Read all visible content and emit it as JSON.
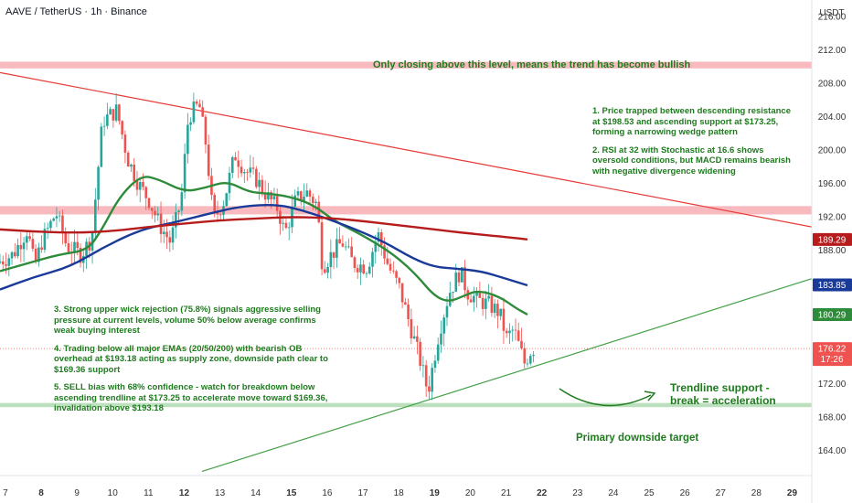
{
  "symbol_title": "AAVE / TetherUS · 1h · Binance",
  "currency": "USDT",
  "colors": {
    "up": "#26a69a",
    "down": "#ef5350",
    "ema20": "#2e8b3a",
    "ema50": "#1a3a99",
    "ema200": "#b71c1c",
    "zone": "#f5a3a8",
    "target_zone": "#a5d6a7",
    "resistance_line": "#e53935",
    "support_line": "#43a047",
    "note_text": "#1e7b1e"
  },
  "annotations": {
    "top_zone_label": "Only closing above this level, means the trend has become bullish",
    "notes_right": [
      "1. Price trapped between descending resistance",
      "at $198.53 and ascending support at $173.25,",
      "forming a narrowing wedge pattern",
      "",
      "2. RSI at 32 with Stochastic at 16.6 shows",
      "oversold conditions, but MACD remains bearish",
      "with negative divergence widening"
    ],
    "notes_left": [
      "3. Strong upper wick rejection (75.8%) signals aggressive selling",
      "pressure at current levels, volume 50% below average confirms",
      "weak buying interest",
      "",
      "4. Trading below all major EMAs (20/50/200) with bearish OB",
      "overhead at $193.18 acting as supply zone, downside path clear to",
      "$169.36 support",
      "",
      "5. SELL bias with 68% confidence - watch for breakdown below",
      "ascending trendline at $173.25 to accelerate move toward $169.36,",
      "invalidation above $193.18"
    ],
    "trendline_label": [
      "Trendline support -",
      "break = acceleration"
    ],
    "target_label": "Primary downside target"
  },
  "price_tags": [
    {
      "label": "189.29",
      "value": 189.29,
      "color": "#b71c1c"
    },
    {
      "label": "183.85",
      "value": 183.85,
      "color": "#1a3a99"
    },
    {
      "label": "180.29",
      "value": 180.29,
      "color": "#2e8b3a"
    },
    {
      "label": "176.22",
      "sub": "17:26",
      "value": 176.22,
      "color": "#ef5350"
    }
  ],
  "chart_data": {
    "type": "candlestick",
    "title": "AAVE / TetherUS · 1h · Binance",
    "y_axis": {
      "label": "USDT",
      "range": [
        161,
        218
      ],
      "ticks": [
        216,
        212,
        208,
        204,
        200,
        196,
        192,
        188,
        184,
        180,
        176,
        172,
        168,
        164
      ],
      "tick_labels": [
        "216.00",
        "212.00",
        "208.00",
        "204.00",
        "200.00",
        "196.00",
        "192.00",
        "188.00",
        "184.00",
        "180.00",
        "176.00",
        "172.00",
        "168.00",
        "164.00"
      ]
    },
    "x_axis": {
      "range": [
        6.85,
        29.55
      ],
      "ticks": [
        7,
        8,
        9,
        10,
        11,
        12,
        13,
        14,
        15,
        16,
        17,
        18,
        19,
        20,
        21,
        22,
        23,
        24,
        25,
        26,
        27,
        28,
        29
      ],
      "tick_labels": [
        "7",
        "8",
        "9",
        "10",
        "11",
        "12",
        "13",
        "14",
        "15",
        "16",
        "17",
        "18",
        "19",
        "20",
        "21",
        "22",
        "23",
        "24",
        "25",
        "26",
        "27",
        "28",
        "29"
      ],
      "bold_ticks": [
        "8",
        "12",
        "15",
        "19",
        "22",
        "29"
      ]
    },
    "price_path": [
      [
        6.85,
        186.5
      ],
      [
        7.3,
        187.5
      ],
      [
        7.7,
        190.5
      ],
      [
        7.9,
        186.0
      ],
      [
        8.1,
        189.0
      ],
      [
        8.5,
        192.5
      ],
      [
        8.8,
        188.5
      ],
      [
        9.2,
        187.5
      ],
      [
        9.5,
        189.5
      ],
      [
        9.8,
        203.5
      ],
      [
        10.2,
        204.8
      ],
      [
        10.5,
        199.0
      ],
      [
        10.8,
        196.0
      ],
      [
        11.1,
        194.0
      ],
      [
        11.4,
        191.0
      ],
      [
        11.7,
        189.0
      ],
      [
        12.0,
        194.0
      ],
      [
        12.2,
        204.0
      ],
      [
        12.5,
        205.5
      ],
      [
        12.7,
        200.5
      ],
      [
        12.9,
        191.5
      ],
      [
        13.2,
        194.0
      ],
      [
        13.5,
        199.5
      ],
      [
        13.8,
        197.5
      ],
      [
        14.1,
        196.5
      ],
      [
        14.4,
        194.5
      ],
      [
        14.7,
        193.0
      ],
      [
        14.9,
        190.0
      ],
      [
        15.2,
        194.0
      ],
      [
        15.5,
        195.0
      ],
      [
        15.8,
        193.5
      ],
      [
        15.95,
        186.0
      ],
      [
        16.2,
        187.5
      ],
      [
        16.5,
        189.0
      ],
      [
        16.8,
        186.5
      ],
      [
        17.2,
        186.0
      ],
      [
        17.5,
        190.0
      ],
      [
        17.8,
        186.0
      ],
      [
        18.1,
        183.5
      ],
      [
        18.4,
        179.0
      ],
      [
        18.7,
        174.5
      ],
      [
        18.9,
        171.0
      ],
      [
        19.2,
        178.0
      ],
      [
        19.5,
        183.0
      ],
      [
        19.8,
        185.5
      ],
      [
        20.0,
        183.0
      ],
      [
        20.3,
        182.0
      ],
      [
        20.6,
        181.5
      ],
      [
        20.9,
        180.5
      ],
      [
        21.1,
        177.5
      ],
      [
        21.3,
        178.5
      ],
      [
        21.6,
        174.5
      ],
      [
        21.8,
        176.2
      ]
    ],
    "series": [
      {
        "name": "EMA 20",
        "color": "#2e8b3a",
        "x": [
          6.85,
          7.5,
          8.5,
          9.3,
          9.7,
          10.2,
          10.8,
          11.3,
          12.0,
          12.6,
          13.2,
          13.8,
          14.3,
          14.9,
          15.6,
          16.2,
          16.9,
          17.5,
          18.0,
          18.5,
          19.0,
          19.4,
          19.8,
          20.2,
          20.8,
          21.3,
          21.6
        ],
        "y": [
          185.5,
          186.3,
          187.5,
          188.0,
          190.5,
          194.5,
          197.0,
          196.5,
          195.0,
          195.5,
          196.3,
          195.0,
          194.8,
          194.5,
          193.5,
          191.5,
          190.0,
          188.5,
          187.0,
          185.0,
          182.5,
          181.8,
          182.5,
          183.2,
          182.5,
          181.0,
          180.3
        ]
      },
      {
        "name": "EMA 50",
        "color": "#1a3a99",
        "x": [
          6.85,
          7.8,
          8.8,
          9.8,
          10.8,
          11.7,
          12.6,
          13.6,
          14.6,
          15.3,
          16.0,
          16.8,
          17.6,
          18.4,
          19.0,
          19.6,
          20.3,
          21.0,
          21.6
        ],
        "y": [
          183.3,
          184.8,
          186.0,
          188.5,
          190.5,
          191.3,
          192.3,
          193.3,
          193.5,
          192.8,
          191.8,
          190.5,
          189.0,
          187.0,
          186.0,
          185.8,
          185.5,
          184.6,
          183.8
        ]
      },
      {
        "name": "EMA 200",
        "color": "#b71c1c",
        "x": [
          6.85,
          8.0,
          9.0,
          10.0,
          11.0,
          12.0,
          13.0,
          14.0,
          15.0,
          16.0,
          17.0,
          18.0,
          19.0,
          20.0,
          21.0,
          21.6
        ],
        "y": [
          190.5,
          190.2,
          190.1,
          190.3,
          190.8,
          191.2,
          191.6,
          191.8,
          192.0,
          191.9,
          191.5,
          191.0,
          190.5,
          190.0,
          189.6,
          189.3
        ]
      }
    ],
    "zones": [
      {
        "name": "top_zone",
        "y_from": 209.8,
        "y_to": 210.6,
        "color": "#f5a3a8"
      },
      {
        "name": "bearish_ob_zone",
        "y_from": 192.3,
        "y_to": 193.3,
        "color": "#f5a3a8"
      },
      {
        "name": "target_zone",
        "y_from": 169.2,
        "y_to": 169.7,
        "color": "#a5d6a7"
      }
    ],
    "trendlines": [
      {
        "name": "descending_resistance",
        "color": "#e53935",
        "from": [
          6.85,
          209.3
        ],
        "to": [
          29.55,
          190.8
        ]
      },
      {
        "name": "ascending_support",
        "color": "#43a047",
        "from": [
          12.5,
          161.5
        ],
        "to": [
          29.55,
          184.6
        ]
      }
    ],
    "last_price": 176.22,
    "last_price_line": 176.22
  }
}
